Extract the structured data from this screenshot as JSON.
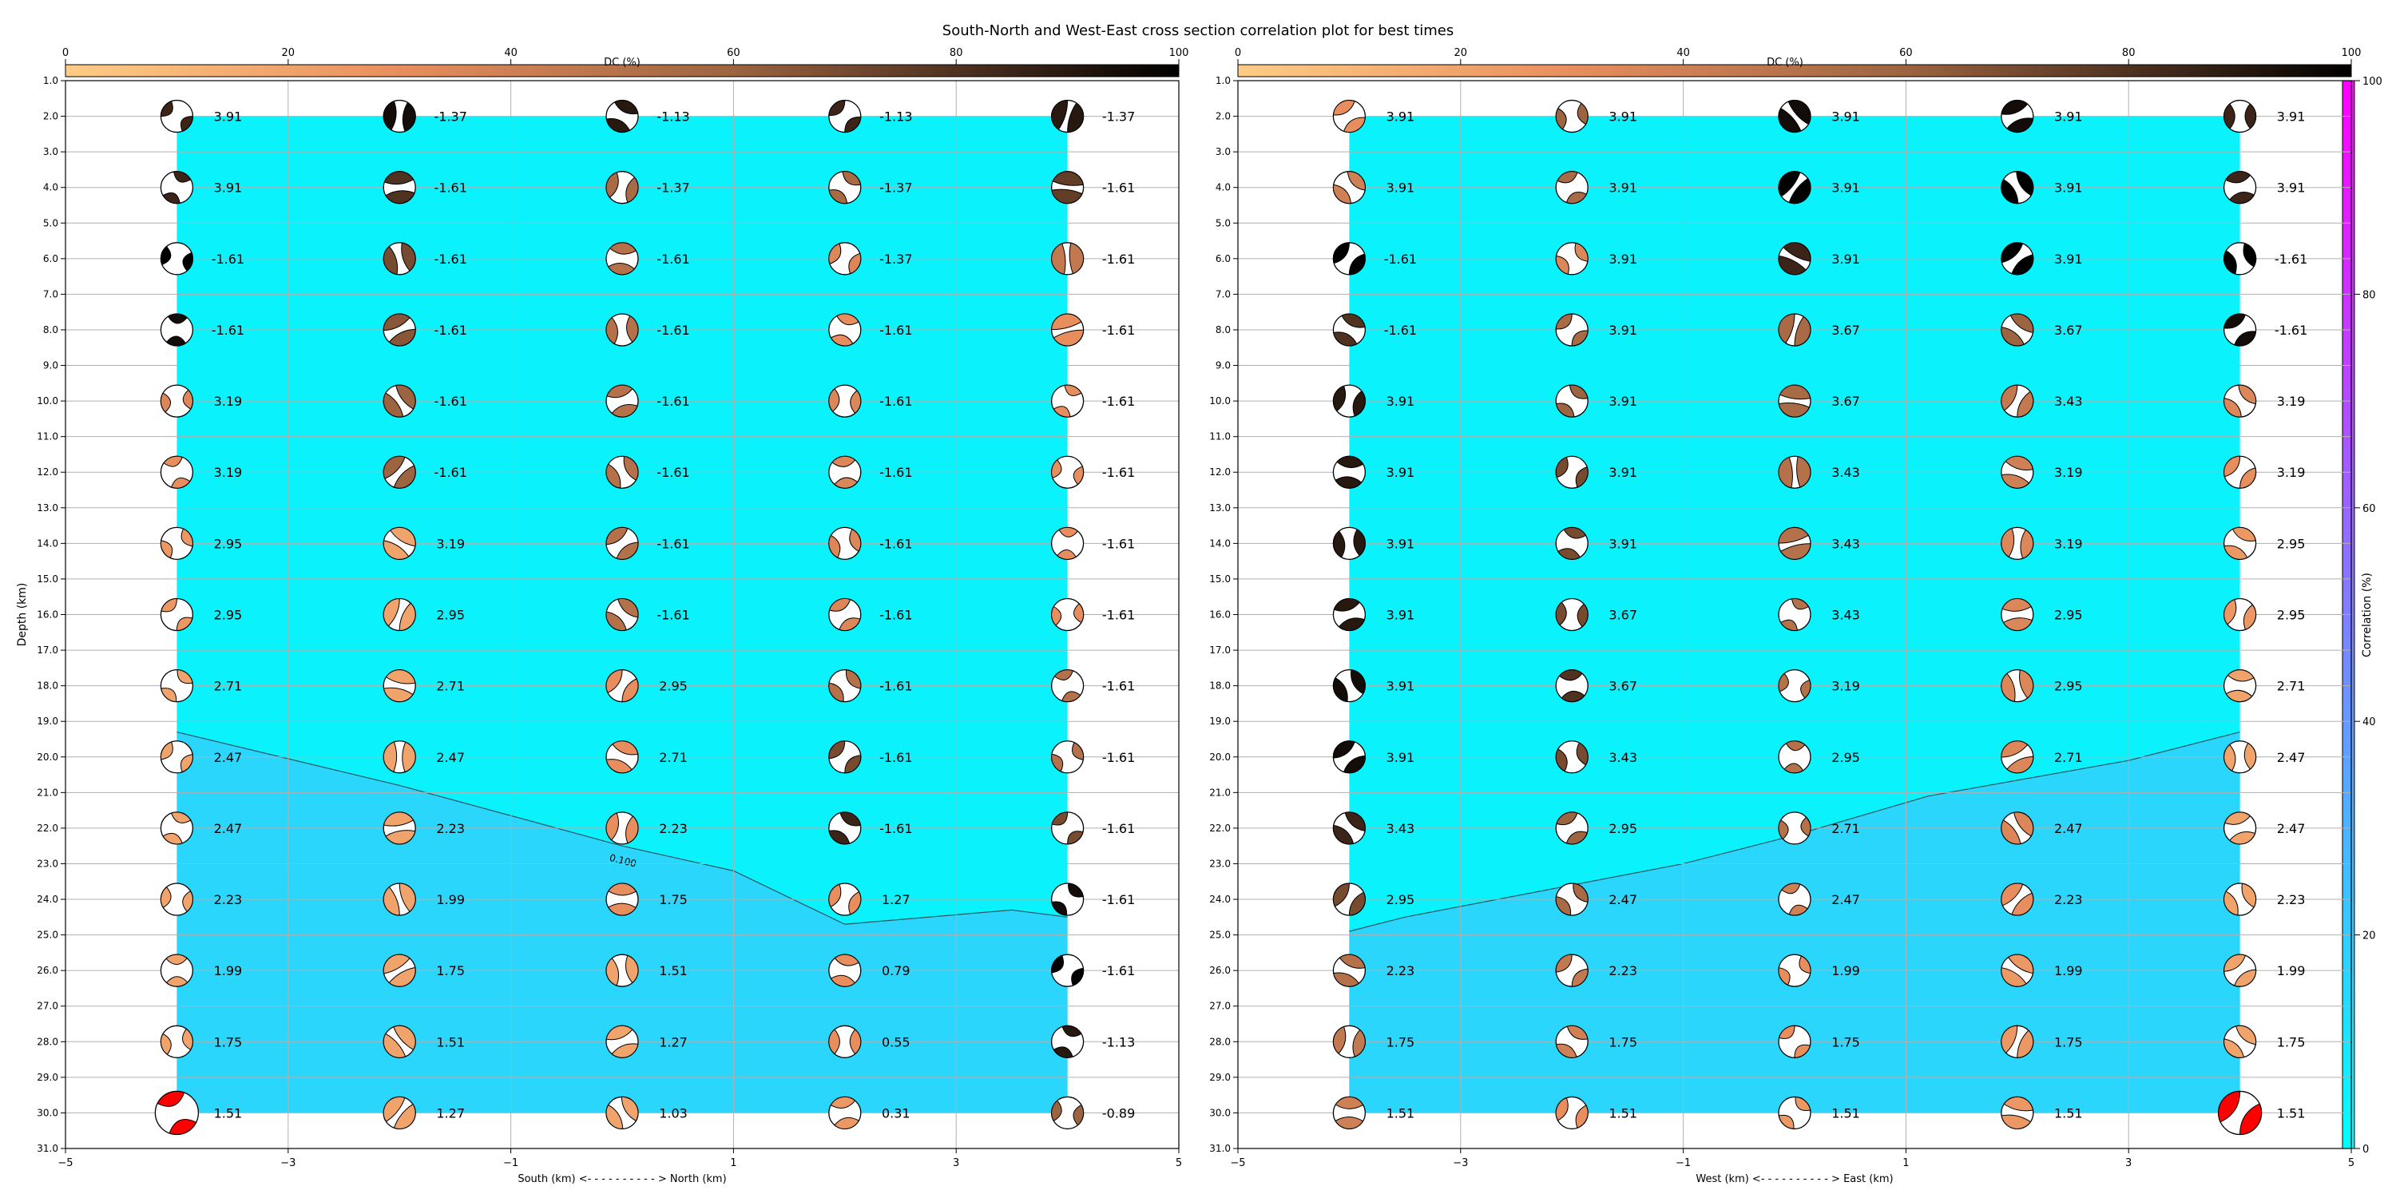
{
  "figure_title": "South-North and West-East cross section correlation plot for best times",
  "dc_colorbar": {
    "label": "DC (%)",
    "ticks": [
      0,
      20,
      40,
      60,
      80,
      100
    ]
  },
  "corr_colorbar": {
    "label": "Correlation (%)",
    "ticks": [
      0,
      20,
      40,
      60,
      80,
      100
    ]
  },
  "chart_data": [
    {
      "type": "scatter",
      "name": "south-north",
      "xlabel": "South (km) <- - - - - - - - - - > North (km)",
      "ylabel": "Depth (km)",
      "xlim": [
        -5,
        5
      ],
      "ylim": [
        31,
        1
      ],
      "xticks": [
        -5,
        -3,
        -1,
        1,
        3,
        5
      ],
      "yticks": [
        1,
        2,
        3,
        4,
        5,
        6,
        7,
        8,
        9,
        10,
        11,
        12,
        13,
        14,
        15,
        16,
        17,
        18,
        19,
        20,
        21,
        22,
        23,
        24,
        25,
        26,
        27,
        28,
        29,
        30,
        31
      ],
      "grid": true,
      "x": [
        -4,
        -2,
        0,
        2,
        4
      ],
      "depths": [
        2,
        4,
        6,
        8,
        10,
        12,
        14,
        16,
        18,
        20,
        22,
        24,
        26,
        28,
        30
      ],
      "values": [
        [
          "3.91",
          "-1.37",
          "-1.13",
          "-1.13",
          "-1.37"
        ],
        [
          "3.91",
          "-1.61",
          "-1.37",
          "-1.37",
          "-1.61"
        ],
        [
          "-1.61",
          "-1.61",
          "-1.61",
          "-1.37",
          "-1.61"
        ],
        [
          "-1.61",
          "-1.61",
          "-1.61",
          "-1.61",
          "-1.61"
        ],
        [
          "3.19",
          "-1.61",
          "-1.61",
          "-1.61",
          "-1.61"
        ],
        [
          "3.19",
          "-1.61",
          "-1.61",
          "-1.61",
          "-1.61"
        ],
        [
          "2.95",
          "3.19",
          "-1.61",
          "-1.61",
          "-1.61"
        ],
        [
          "2.95",
          "2.95",
          "-1.61",
          "-1.61",
          "-1.61"
        ],
        [
          "2.71",
          "2.71",
          "2.95",
          "-1.61",
          "-1.61"
        ],
        [
          "2.47",
          "2.47",
          "2.71",
          "-1.61",
          "-1.61"
        ],
        [
          "2.47",
          "2.23",
          "2.23",
          "-1.61",
          "-1.61"
        ],
        [
          "2.23",
          "1.99",
          "1.75",
          "1.27",
          "-1.61"
        ],
        [
          "1.99",
          "1.75",
          "1.51",
          "0.79",
          "-1.61"
        ],
        [
          "1.75",
          "1.51",
          "1.27",
          "0.55",
          "-1.13"
        ],
        [
          "1.51",
          "1.27",
          "1.03",
          "0.31",
          "-0.89"
        ]
      ],
      "dc": [
        [
          85,
          95,
          90,
          85,
          90
        ],
        [
          85,
          80,
          55,
          55,
          75
        ],
        [
          100,
          70,
          50,
          35,
          45
        ],
        [
          95,
          65,
          50,
          30,
          30
        ],
        [
          35,
          60,
          50,
          35,
          30
        ],
        [
          30,
          60,
          50,
          35,
          30
        ],
        [
          25,
          20,
          50,
          35,
          30
        ],
        [
          25,
          20,
          50,
          35,
          30
        ],
        [
          20,
          20,
          30,
          50,
          50
        ],
        [
          20,
          20,
          30,
          70,
          50
        ],
        [
          20,
          20,
          30,
          85,
          70
        ],
        [
          20,
          20,
          30,
          30,
          95
        ],
        [
          20,
          20,
          20,
          30,
          100
        ],
        [
          20,
          20,
          20,
          30,
          90
        ],
        [
          0,
          20,
          20,
          25,
          60
        ]
      ],
      "best_marker": [
        14,
        0
      ],
      "contour_label": "0.100",
      "contour": [
        [
          -4,
          19.3
        ],
        [
          -2,
          20.8
        ],
        [
          0,
          22.5
        ],
        [
          1,
          23.2
        ],
        [
          2,
          24.7
        ],
        [
          3.5,
          24.3
        ],
        [
          4,
          24.5
        ]
      ]
    },
    {
      "type": "scatter",
      "name": "west-east",
      "xlabel": "West (km) <- - - - - - - - - - > East (km)",
      "ylabel": "",
      "xlim": [
        -5,
        5
      ],
      "ylim": [
        31,
        1
      ],
      "xticks": [
        -5,
        -3,
        -1,
        1,
        3,
        5
      ],
      "yticks": [
        1,
        2,
        3,
        4,
        5,
        6,
        7,
        8,
        9,
        10,
        11,
        12,
        13,
        14,
        15,
        16,
        17,
        18,
        19,
        20,
        21,
        22,
        23,
        24,
        25,
        26,
        27,
        28,
        29,
        30,
        31
      ],
      "grid": true,
      "x": [
        -4,
        -2,
        0,
        2,
        4
      ],
      "depths": [
        2,
        4,
        6,
        8,
        10,
        12,
        14,
        16,
        18,
        20,
        22,
        24,
        26,
        28,
        30
      ],
      "values": [
        [
          "3.91",
          "3.91",
          "3.91",
          "3.91",
          "3.91"
        ],
        [
          "3.91",
          "3.91",
          "3.91",
          "3.91",
          "3.91"
        ],
        [
          "-1.61",
          "3.91",
          "3.91",
          "3.91",
          "-1.61"
        ],
        [
          "-1.61",
          "3.91",
          "3.67",
          "3.67",
          "-1.61"
        ],
        [
          "3.91",
          "3.91",
          "3.67",
          "3.43",
          "3.19"
        ],
        [
          "3.91",
          "3.91",
          "3.43",
          "3.19",
          "3.19"
        ],
        [
          "3.91",
          "3.91",
          "3.43",
          "3.19",
          "2.95"
        ],
        [
          "3.91",
          "3.67",
          "3.43",
          "2.95",
          "2.95"
        ],
        [
          "3.91",
          "3.67",
          "3.19",
          "2.95",
          "2.71"
        ],
        [
          "3.91",
          "3.43",
          "2.95",
          "2.71",
          "2.47"
        ],
        [
          "3.43",
          "2.95",
          "2.71",
          "2.47",
          "2.47"
        ],
        [
          "2.95",
          "2.47",
          "2.47",
          "2.23",
          "2.23"
        ],
        [
          "2.23",
          "2.23",
          "1.99",
          "1.99",
          "1.99"
        ],
        [
          "1.75",
          "1.75",
          "1.75",
          "1.75",
          "1.75"
        ],
        [
          "1.51",
          "1.51",
          "1.51",
          "1.51",
          "1.51"
        ]
      ],
      "dc": [
        [
          30,
          60,
          95,
          95,
          85
        ],
        [
          40,
          55,
          100,
          100,
          85
        ],
        [
          100,
          35,
          85,
          100,
          100
        ],
        [
          80,
          55,
          55,
          60,
          95
        ],
        [
          90,
          60,
          55,
          45,
          35
        ],
        [
          90,
          70,
          50,
          40,
          30
        ],
        [
          90,
          70,
          50,
          35,
          25
        ],
        [
          90,
          70,
          50,
          35,
          25
        ],
        [
          95,
          80,
          50,
          35,
          20
        ],
        [
          95,
          70,
          50,
          35,
          20
        ],
        [
          85,
          60,
          50,
          35,
          20
        ],
        [
          70,
          55,
          40,
          30,
          20
        ],
        [
          50,
          45,
          30,
          25,
          20
        ],
        [
          45,
          40,
          30,
          25,
          20
        ],
        [
          40,
          30,
          25,
          25,
          0
        ]
      ],
      "best_marker": [
        14,
        4
      ],
      "contour_label": "",
      "contour": [
        [
          -4,
          24.9
        ],
        [
          -3.5,
          24.5
        ],
        [
          -1,
          23.0
        ],
        [
          0,
          22.2
        ],
        [
          1.2,
          21.1
        ],
        [
          3,
          20.1
        ],
        [
          4,
          19.3
        ]
      ]
    }
  ]
}
